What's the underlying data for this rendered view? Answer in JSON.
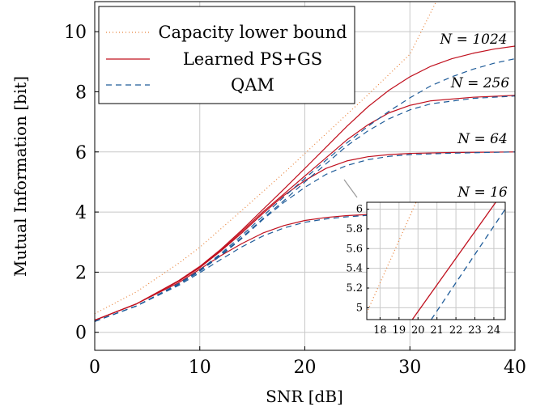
{
  "chart_data": {
    "type": "line",
    "title": "",
    "xlabel": "SNR [dB]",
    "ylabel": "Mutual Information [bit]",
    "xlim": [
      0,
      40
    ],
    "ylim": [
      -0.6,
      11
    ],
    "xticks": [
      0,
      10,
      20,
      30,
      40
    ],
    "yticks": [
      0,
      2,
      4,
      6,
      8,
      10
    ],
    "grid": true,
    "legend_position": "top-left",
    "legend": [
      {
        "label": "Capacity lower bound",
        "style": "dotted",
        "color": "#e8823a"
      },
      {
        "label": "Learned PS+GS",
        "style": "solid",
        "color": "#c0101e"
      },
      {
        "label": "QAM",
        "style": "dashed",
        "color": "#1f5c99"
      }
    ],
    "annotations": [
      "N = 1024",
      "N = 256",
      "N = 64",
      "N = 16"
    ],
    "series": [
      {
        "name": "Capacity lower bound",
        "style": "dotted",
        "color": "#e8823a",
        "x": [
          0,
          4,
          8,
          10,
          14,
          18,
          22,
          26,
          30,
          32.5
        ],
        "y": [
          0.62,
          1.35,
          2.3,
          2.83,
          4.05,
          5.3,
          6.6,
          7.9,
          9.25,
          11
        ]
      },
      {
        "name": "Learned PS+GS N=16",
        "style": "solid",
        "color": "#c0101e",
        "x": [
          0,
          4,
          8,
          10,
          12,
          14,
          16,
          18,
          20,
          22,
          24,
          26,
          30
        ],
        "y": [
          0.4,
          0.95,
          1.65,
          2.1,
          2.55,
          2.95,
          3.3,
          3.55,
          3.72,
          3.82,
          3.88,
          3.92,
          4.0
        ]
      },
      {
        "name": "QAM N=16",
        "style": "dashed",
        "color": "#1f5c99",
        "x": [
          0,
          4,
          8,
          10,
          12,
          14,
          16,
          18,
          20,
          22,
          24,
          26,
          30
        ],
        "y": [
          0.36,
          0.88,
          1.56,
          1.98,
          2.42,
          2.84,
          3.2,
          3.47,
          3.66,
          3.77,
          3.84,
          3.89,
          3.98
        ]
      },
      {
        "name": "Learned PS+GS N=64",
        "style": "solid",
        "color": "#c0101e",
        "x": [
          0,
          4,
          8,
          10,
          12,
          14,
          16,
          18,
          20,
          22,
          24,
          26,
          28,
          30,
          34,
          40
        ],
        "y": [
          0.4,
          0.95,
          1.7,
          2.15,
          2.7,
          3.3,
          3.95,
          4.55,
          5.05,
          5.45,
          5.7,
          5.84,
          5.91,
          5.95,
          5.98,
          6.0
        ]
      },
      {
        "name": "QAM N=64",
        "style": "dashed",
        "color": "#1f5c99",
        "x": [
          0,
          4,
          8,
          10,
          12,
          14,
          16,
          18,
          20,
          22,
          24,
          26,
          28,
          30,
          34,
          40
        ],
        "y": [
          0.36,
          0.88,
          1.6,
          2.03,
          2.55,
          3.12,
          3.75,
          4.32,
          4.82,
          5.25,
          5.55,
          5.74,
          5.85,
          5.91,
          5.96,
          6.0
        ]
      },
      {
        "name": "Learned PS+GS N=256",
        "style": "solid",
        "color": "#c0101e",
        "x": [
          0,
          4,
          8,
          10,
          12,
          14,
          16,
          18,
          20,
          22,
          24,
          26,
          28,
          30,
          32,
          36,
          40
        ],
        "y": [
          0.4,
          0.95,
          1.7,
          2.17,
          2.72,
          3.35,
          4.0,
          4.6,
          5.2,
          5.8,
          6.4,
          6.9,
          7.3,
          7.55,
          7.7,
          7.82,
          7.88
        ]
      },
      {
        "name": "QAM N=256",
        "style": "dashed",
        "color": "#1f5c99",
        "x": [
          0,
          4,
          8,
          10,
          12,
          14,
          16,
          18,
          20,
          22,
          24,
          26,
          28,
          30,
          32,
          36,
          40
        ],
        "y": [
          0.36,
          0.88,
          1.6,
          2.05,
          2.58,
          3.15,
          3.78,
          4.38,
          5.0,
          5.6,
          6.2,
          6.7,
          7.1,
          7.4,
          7.6,
          7.78,
          7.86
        ]
      },
      {
        "name": "Learned PS+GS N=1024",
        "style": "solid",
        "color": "#c0101e",
        "x": [
          0,
          4,
          8,
          10,
          12,
          14,
          16,
          18,
          20,
          22,
          24,
          26,
          28,
          30,
          32,
          34,
          36,
          38,
          40
        ],
        "y": [
          0.4,
          0.95,
          1.72,
          2.19,
          2.76,
          3.4,
          4.08,
          4.76,
          5.45,
          6.15,
          6.85,
          7.5,
          8.05,
          8.5,
          8.85,
          9.1,
          9.28,
          9.42,
          9.52
        ]
      },
      {
        "name": "QAM N=1024",
        "style": "dashed",
        "color": "#1f5c99",
        "x": [
          0,
          4,
          8,
          10,
          12,
          14,
          16,
          18,
          20,
          22,
          24,
          26,
          28,
          30,
          32,
          34,
          36,
          38,
          40
        ],
        "y": [
          0.36,
          0.88,
          1.62,
          2.07,
          2.62,
          3.22,
          3.86,
          4.5,
          5.12,
          5.72,
          6.3,
          6.85,
          7.35,
          7.8,
          8.2,
          8.5,
          8.75,
          8.95,
          9.1
        ]
      }
    ],
    "inset": {
      "xlim": [
        17.3,
        24.6
      ],
      "ylim": [
        4.88,
        6.07
      ],
      "xticks": [
        18,
        19,
        20,
        21,
        22,
        23,
        24
      ],
      "yticks": [
        5,
        5.2,
        5.4,
        5.6,
        5.8,
        6
      ],
      "ytick_labels": [
        "5",
        "5.2",
        "5.4",
        "5.6",
        "5.8",
        "6"
      ],
      "series": [
        {
          "name": "Capacity lower bound",
          "style": "dotted",
          "color": "#e8823a",
          "x": [
            17.3,
            19.9
          ],
          "y": [
            4.95,
            6.07
          ]
        },
        {
          "name": "Learned PS+GS",
          "style": "solid",
          "color": "#c0101e",
          "x": [
            19.7,
            24.1
          ],
          "y": [
            4.88,
            6.07
          ]
        },
        {
          "name": "QAM",
          "style": "dashed",
          "color": "#1f5c99",
          "x": [
            20.7,
            24.6
          ],
          "y": [
            4.88,
            6.0
          ]
        }
      ]
    }
  }
}
